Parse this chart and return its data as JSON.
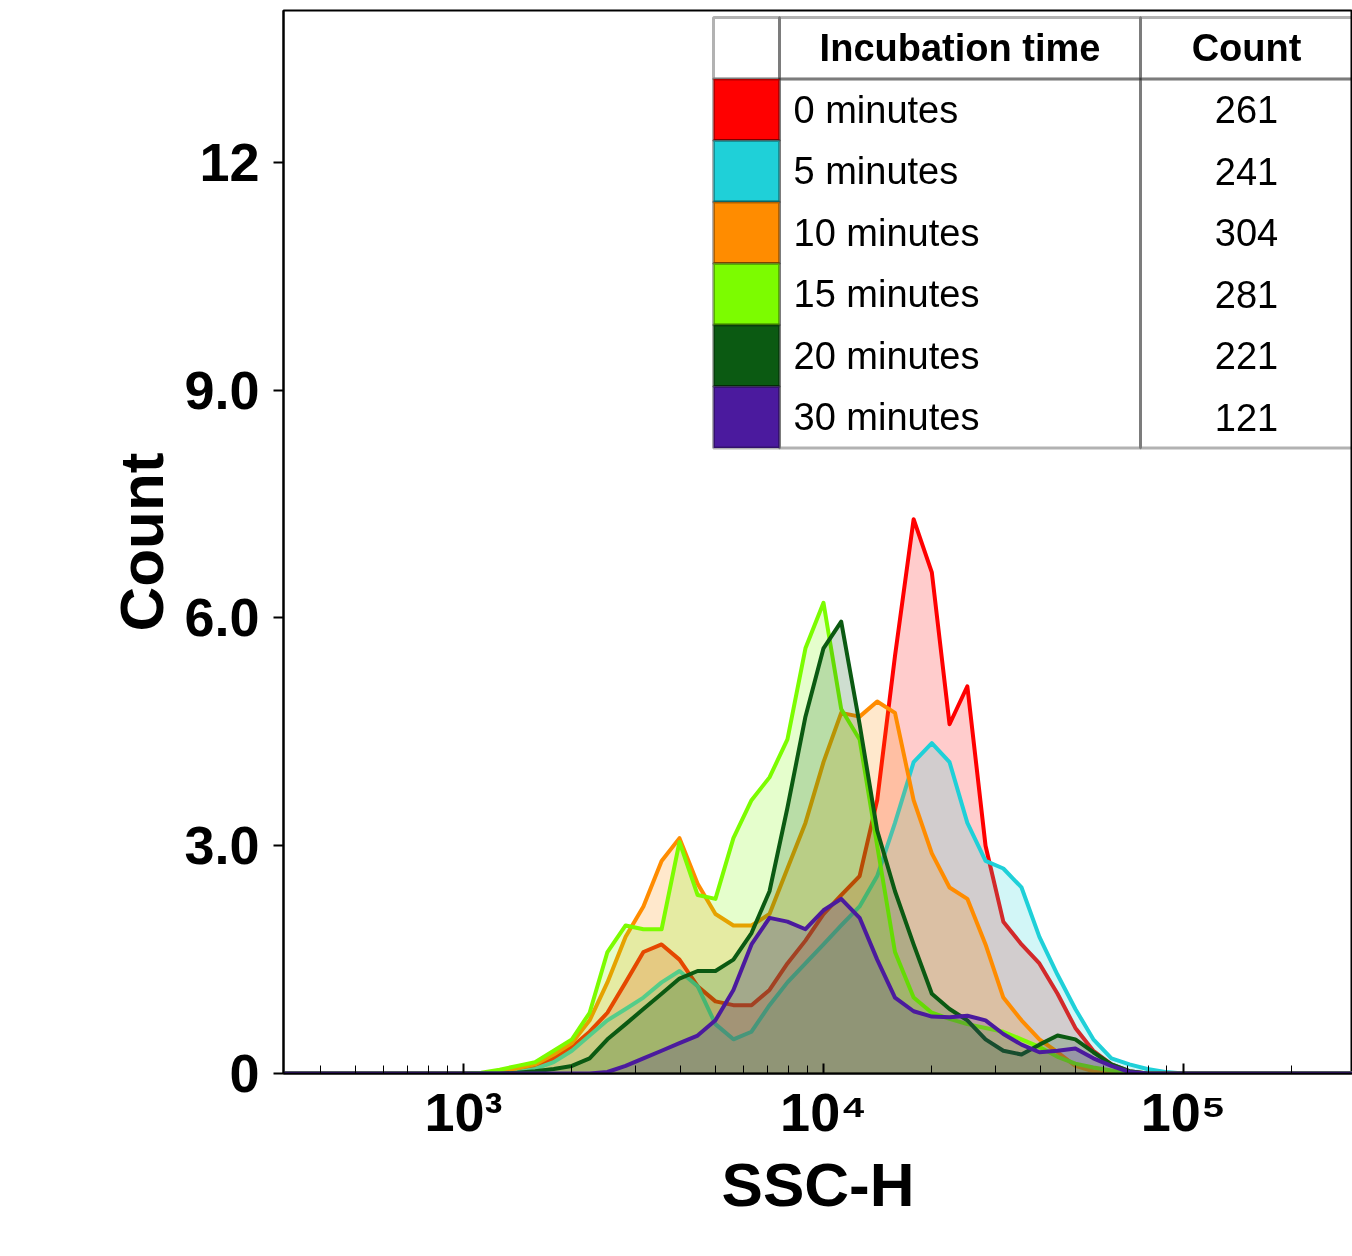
{
  "chart_data": {
    "type": "area",
    "xlabel": "SSC-H",
    "ylabel": "Count",
    "legend_title": "Incubation time",
    "annotations": [
      "Count",
      "261",
      "241",
      "304",
      "281",
      "221",
      "121"
    ],
    "log": "x",
    "x": [
      316,
      1000,
      1120,
      1260,
      1410,
      1580,
      1780,
      2000,
      2240,
      2510,
      2820,
      3160,
      3550,
      3980,
      4470,
      5010,
      5620,
      6310,
      7080,
      7940,
      8910,
      10000,
      11200,
      12600,
      14100,
      15800,
      17800,
      20000,
      22400,
      25100,
      28200,
      31600,
      35500,
      39800,
      44700,
      50100,
      56200,
      63100,
      70800,
      79400,
      89100,
      100000,
      295000
    ],
    "xlim": [
      316,
      295000
    ],
    "xticks": [
      {
        "value": 1000,
        "label": "10³"
      },
      {
        "value": 10000,
        "label": "10⁴"
      },
      {
        "value": 100000,
        "label": "10⁵"
      }
    ],
    "ylim": [
      0,
      14
    ],
    "yticks": [
      0,
      {
        "value": 3,
        "label": "3.0"
      },
      {
        "value": 6,
        "label": "6.0"
      },
      {
        "value": 9,
        "label": "9.0"
      },
      12
    ],
    "grid": false,
    "legend": "top right",
    "series": [
      {
        "name": "0 minutes",
        "color": "#ff0000",
        "values": [
          0,
          0,
          0,
          0.02,
          0.05,
          0.1,
          0.2,
          0.35,
          0.55,
          0.8,
          1.2,
          1.6,
          1.7,
          1.5,
          1.15,
          0.95,
          0.9,
          0.9,
          1.1,
          1.45,
          1.75,
          2.1,
          2.35,
          2.6,
          3.6,
          5.5,
          7.3,
          6.6,
          4.6,
          5.1,
          3.0,
          2.0,
          1.7,
          1.45,
          1.05,
          0.6,
          0.3,
          0.12,
          0.03,
          0,
          0,
          0,
          0
        ]
      },
      {
        "name": "5 minutes",
        "color": "#1fd0d8",
        "values": [
          0,
          0,
          0,
          0,
          0.02,
          0.06,
          0.15,
          0.3,
          0.5,
          0.7,
          0.85,
          1.0,
          1.2,
          1.35,
          1.15,
          0.65,
          0.45,
          0.55,
          0.9,
          1.2,
          1.45,
          1.7,
          1.95,
          2.2,
          2.6,
          3.3,
          4.1,
          4.35,
          4.1,
          3.3,
          2.8,
          2.7,
          2.45,
          1.8,
          1.3,
          0.85,
          0.45,
          0.2,
          0.12,
          0.06,
          0.02,
          0,
          0
        ]
      },
      {
        "name": "10 minutes",
        "color": "#ff8c00",
        "values": [
          0,
          0,
          0,
          0.03,
          0.07,
          0.12,
          0.25,
          0.4,
          0.7,
          1.2,
          1.8,
          2.2,
          2.8,
          3.1,
          2.5,
          2.1,
          1.95,
          1.95,
          2.1,
          2.7,
          3.3,
          4.1,
          4.75,
          4.7,
          4.9,
          4.75,
          3.6,
          2.9,
          2.45,
          2.3,
          1.7,
          1.0,
          0.7,
          0.45,
          0.28,
          0.1,
          0.03,
          0,
          0,
          0,
          0,
          0,
          0
        ]
      },
      {
        "name": "15 minutes",
        "color": "#7cfc00",
        "values": [
          0,
          0,
          0.01,
          0.05,
          0.1,
          0.15,
          0.3,
          0.45,
          0.8,
          1.6,
          1.95,
          1.9,
          1.9,
          3.05,
          2.35,
          2.3,
          3.1,
          3.6,
          3.9,
          4.4,
          5.6,
          6.2,
          4.8,
          4.4,
          3.0,
          1.6,
          1.0,
          0.8,
          0.72,
          0.65,
          0.6,
          0.55,
          0.45,
          0.35,
          0.22,
          0.13,
          0.08,
          0.04,
          0.01,
          0,
          0,
          0,
          0
        ]
      },
      {
        "name": "20 minutes",
        "color": "#0b5a12",
        "values": [
          0,
          0,
          0,
          0,
          0.01,
          0.03,
          0.06,
          0.1,
          0.2,
          0.45,
          0.65,
          0.85,
          1.05,
          1.25,
          1.35,
          1.35,
          1.5,
          1.85,
          2.4,
          3.5,
          4.7,
          5.6,
          5.95,
          4.6,
          3.2,
          2.4,
          1.7,
          1.05,
          0.85,
          0.7,
          0.45,
          0.3,
          0.25,
          0.38,
          0.5,
          0.45,
          0.28,
          0.12,
          0.03,
          0,
          0,
          0,
          0
        ]
      },
      {
        "name": "30 minutes",
        "color": "#4b1a9e",
        "values": [
          0,
          0,
          0,
          0,
          0,
          0,
          0,
          0,
          0,
          0.02,
          0.1,
          0.2,
          0.3,
          0.4,
          0.5,
          0.7,
          1.1,
          1.7,
          2.05,
          2.0,
          1.9,
          2.15,
          2.3,
          2.05,
          1.5,
          1.0,
          0.82,
          0.75,
          0.74,
          0.76,
          0.7,
          0.52,
          0.38,
          0.28,
          0.3,
          0.33,
          0.2,
          0.1,
          0.02,
          0,
          0,
          0,
          0
        ]
      }
    ]
  }
}
